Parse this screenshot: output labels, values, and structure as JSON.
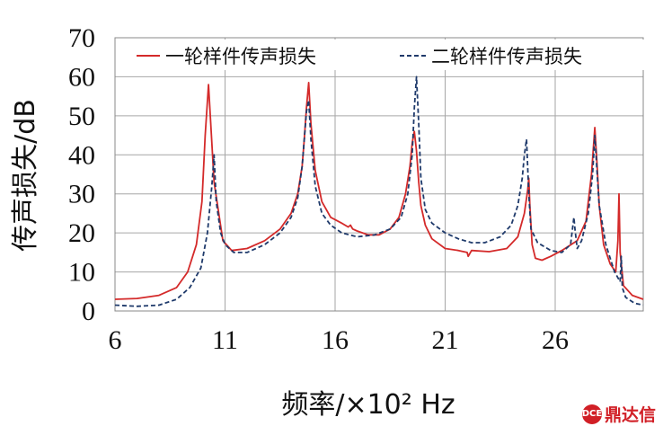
{
  "chart_data": {
    "type": "line",
    "title": "",
    "xlabel": "频率/×10² Hz",
    "ylabel": "传声损失/dB",
    "xlim": [
      6,
      30
    ],
    "ylim": [
      0,
      70
    ],
    "xticks": [
      6,
      11,
      16,
      21,
      26
    ],
    "yticks": [
      0,
      10,
      20,
      30,
      40,
      50,
      60,
      70
    ],
    "grid": true,
    "legend_position": "top",
    "series": [
      {
        "name": "一轮样件传声损失",
        "color": "#d42a2a",
        "style": "solid",
        "x": [
          6.0,
          7.0,
          8.0,
          8.8,
          9.3,
          9.7,
          9.95,
          10.1,
          10.25,
          10.5,
          10.9,
          11.3,
          12.0,
          12.8,
          13.5,
          14.0,
          14.3,
          14.5,
          14.6,
          14.7,
          14.8,
          14.9,
          15.1,
          15.4,
          15.8,
          16.3,
          16.6,
          16.7,
          16.8,
          17.0,
          17.5,
          18.0,
          18.5,
          18.9,
          19.2,
          19.4,
          19.5,
          19.6,
          19.7,
          19.8,
          19.9,
          20.1,
          20.4,
          21.0,
          21.6,
          22.0,
          22.05,
          22.2,
          23.0,
          23.8,
          24.3,
          24.6,
          24.75,
          24.8,
          24.85,
          24.95,
          25.1,
          25.4,
          25.8,
          26.3,
          27.0,
          27.4,
          27.65,
          27.8,
          27.9,
          28.0,
          28.2,
          28.5,
          28.75,
          28.85,
          28.9,
          28.95,
          29.1,
          29.5,
          30.0
        ],
        "y": [
          3,
          3.2,
          4,
          6,
          10,
          17,
          28,
          45,
          58,
          33,
          18,
          15.5,
          16,
          18,
          21,
          25,
          30,
          37,
          44,
          52,
          58.5,
          48,
          36,
          28,
          24,
          22.5,
          21.5,
          22,
          21,
          20.5,
          19.5,
          19.5,
          21,
          24,
          30,
          37,
          43,
          46,
          41,
          33,
          27,
          22,
          18.5,
          16,
          15.5,
          15,
          14,
          15.5,
          15.2,
          16,
          19,
          25,
          31,
          34,
          27,
          17,
          13.5,
          13,
          14,
          15.5,
          18,
          23,
          35,
          47,
          38,
          27,
          17,
          12,
          10,
          18,
          30,
          15,
          6.5,
          4,
          3
        ]
      },
      {
        "name": "二轮样件传声损失",
        "color": "#1f3a6b",
        "style": "dashed",
        "x": [
          6.0,
          7.0,
          8.0,
          8.8,
          9.4,
          9.9,
          10.2,
          10.4,
          10.5,
          10.6,
          10.8,
          11.0,
          11.4,
          12.0,
          12.8,
          13.5,
          14.0,
          14.3,
          14.5,
          14.6,
          14.7,
          14.8,
          14.9,
          15.1,
          15.4,
          15.8,
          16.3,
          17.0,
          17.8,
          18.5,
          19.0,
          19.3,
          19.5,
          19.6,
          19.7,
          19.8,
          19.9,
          20.1,
          20.4,
          21.0,
          21.6,
          22.2,
          22.8,
          23.5,
          24.0,
          24.3,
          24.5,
          24.6,
          24.7,
          24.8,
          24.9,
          25.2,
          25.8,
          26.3,
          26.7,
          26.85,
          26.9,
          27.0,
          27.2,
          27.5,
          27.7,
          27.8,
          27.9,
          28.0,
          28.3,
          28.7,
          28.95,
          29.0,
          29.05,
          29.2,
          29.6,
          30.0
        ],
        "y": [
          1.5,
          1.2,
          1.5,
          3,
          6,
          11,
          20,
          32,
          40,
          28,
          20,
          17,
          15,
          15,
          17,
          20,
          24,
          29,
          37,
          44,
          51,
          54,
          44,
          32,
          25,
          22,
          20,
          19,
          19.5,
          21,
          24,
          30,
          40,
          52,
          60,
          48,
          34,
          26,
          22.5,
          20,
          18.5,
          17.5,
          17.5,
          19,
          22,
          27,
          34,
          40,
          44,
          30,
          21,
          17.5,
          15.5,
          15,
          17,
          24,
          21,
          16,
          18,
          25,
          35,
          45,
          36,
          27,
          17,
          10,
          7.5,
          14,
          6,
          3.5,
          2,
          1.5
        ]
      }
    ]
  },
  "watermark": {
    "badge": "DCE",
    "text": "鼎达信"
  }
}
